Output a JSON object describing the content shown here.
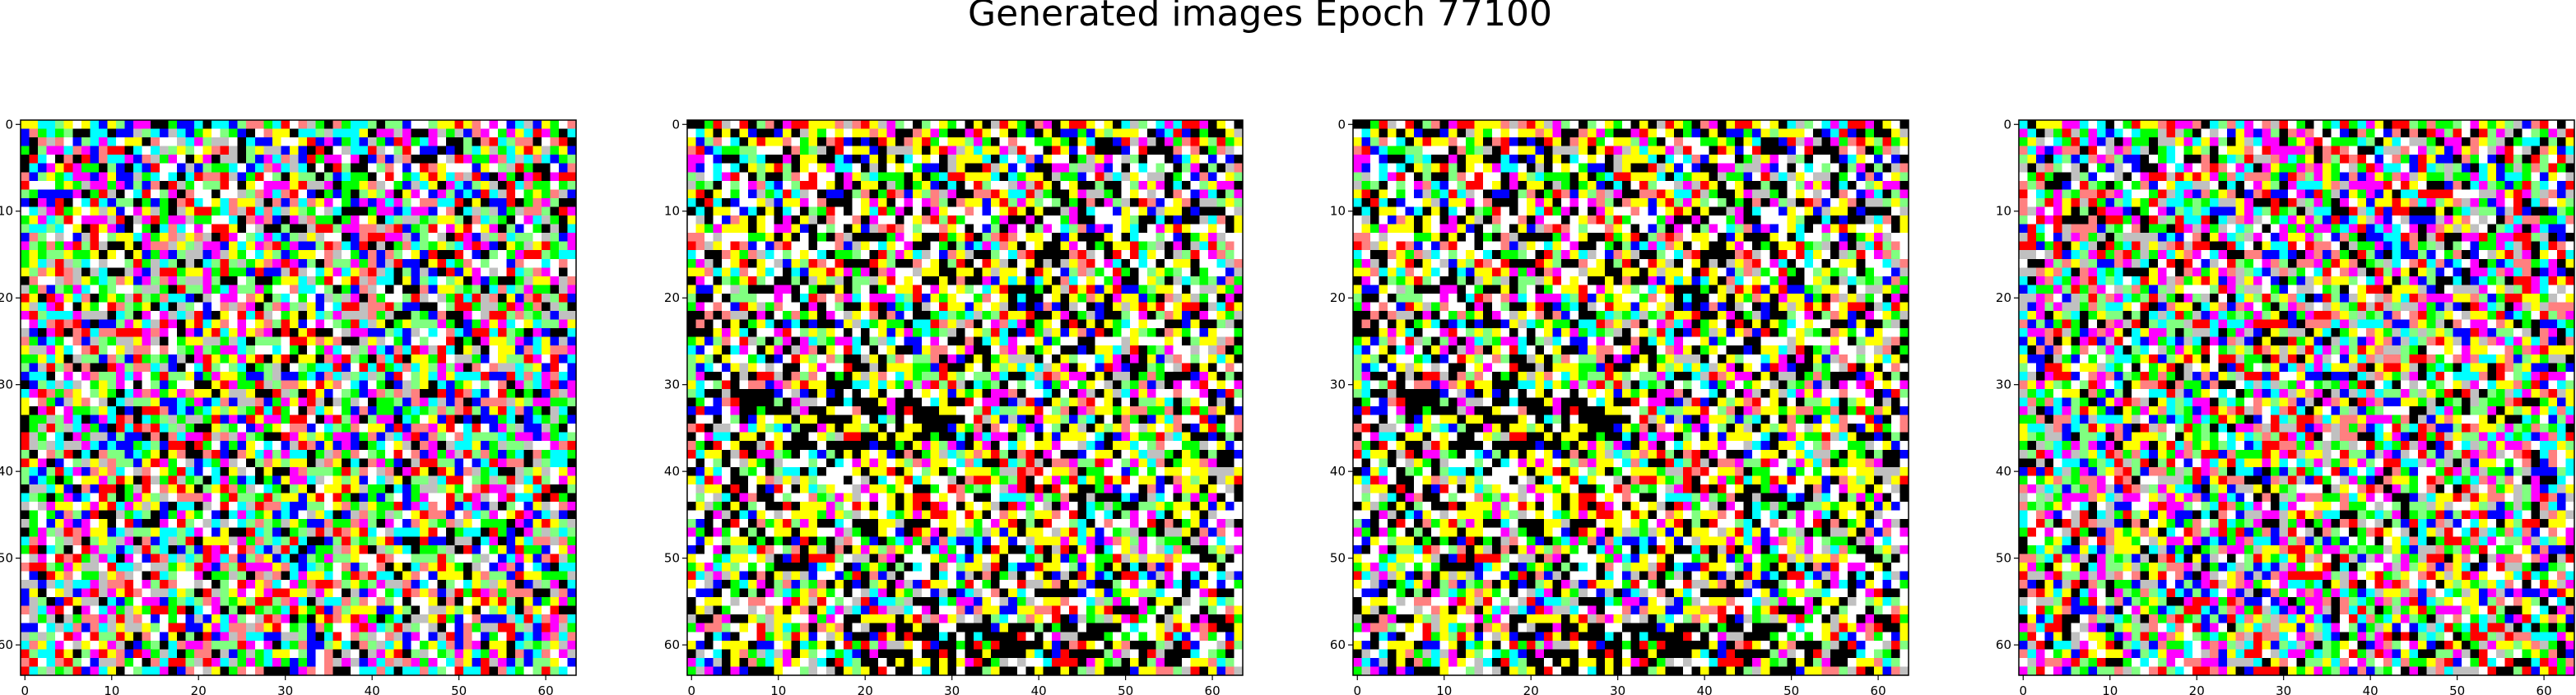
{
  "figure": {
    "title": "Generated images Epoch 77100"
  },
  "chart_data": [
    {
      "type": "heatmap",
      "image_size": 64,
      "pattern": "noise",
      "seed": 11,
      "xticks": [
        0,
        10,
        20,
        30,
        40,
        50,
        60
      ],
      "yticks": [
        0,
        10,
        20,
        30,
        40,
        50,
        60
      ],
      "xlim": [
        -0.5,
        63.5
      ],
      "ylim": [
        63.5,
        -0.5
      ]
    },
    {
      "type": "heatmap",
      "image_size": 64,
      "pattern": "structured",
      "seed": 23,
      "xticks": [
        0,
        10,
        20,
        30,
        40,
        50,
        60
      ],
      "yticks": [
        0,
        10,
        20,
        30,
        40,
        50,
        60
      ],
      "xlim": [
        -0.5,
        63.5
      ],
      "ylim": [
        63.5,
        -0.5
      ]
    },
    {
      "type": "heatmap",
      "image_size": 64,
      "pattern": "structured",
      "seed": 23,
      "xticks": [
        0,
        10,
        20,
        30,
        40,
        50,
        60
      ],
      "yticks": [
        0,
        10,
        20,
        30,
        40,
        50,
        60
      ],
      "xlim": [
        -0.5,
        63.5
      ],
      "ylim": [
        63.5,
        -0.5
      ]
    },
    {
      "type": "heatmap",
      "image_size": 64,
      "pattern": "noise",
      "seed": 47,
      "xticks": [
        0,
        10,
        20,
        30,
        40,
        50,
        60
      ],
      "yticks": [
        0,
        10,
        20,
        30,
        40,
        50,
        60
      ],
      "xlim": [
        -0.5,
        63.5
      ],
      "ylim": [
        63.5,
        -0.5
      ]
    }
  ],
  "palette": [
    "#ffffff",
    "#000000",
    "#ff0000",
    "#00ff00",
    "#0000ff",
    "#ffff00",
    "#00ffff",
    "#ff00ff",
    "#ff8080",
    "#80ff80",
    "#c0c0c0"
  ]
}
